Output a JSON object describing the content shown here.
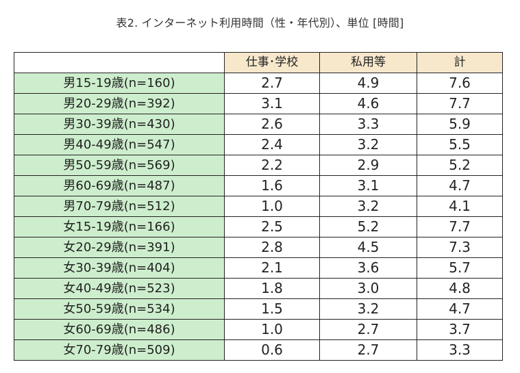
{
  "title": "表2. インターネット利用時間（性・年代別）、単位 [時間]",
  "table": {
    "headers": [
      "",
      "仕事･学校",
      "私用等",
      "計"
    ],
    "rows": [
      {
        "label": "男15-19歳(n=160)",
        "work": "2.7",
        "private": "4.9",
        "total": "7.6"
      },
      {
        "label": "男20-29歳(n=392)",
        "work": "3.1",
        "private": "4.6",
        "total": "7.7"
      },
      {
        "label": "男30-39歳(n=430)",
        "work": "2.6",
        "private": "3.3",
        "total": "5.9"
      },
      {
        "label": "男40-49歳(n=547)",
        "work": "2.4",
        "private": "3.2",
        "total": "5.5"
      },
      {
        "label": "男50-59歳(n=569)",
        "work": "2.2",
        "private": "2.9",
        "total": "5.2"
      },
      {
        "label": "男60-69歳(n=487)",
        "work": "1.6",
        "private": "3.1",
        "total": "4.7"
      },
      {
        "label": "男70-79歳(n=512)",
        "work": "1.0",
        "private": "3.2",
        "total": "4.1"
      },
      {
        "label": "女15-19歳(n=166)",
        "work": "2.5",
        "private": "5.2",
        "total": "7.7"
      },
      {
        "label": "女20-29歳(n=391)",
        "work": "2.8",
        "private": "4.5",
        "total": "7.3"
      },
      {
        "label": "女30-39歳(n=404)",
        "work": "2.1",
        "private": "3.6",
        "total": "5.7"
      },
      {
        "label": "女40-49歳(n=523)",
        "work": "1.8",
        "private": "3.0",
        "total": "4.8"
      },
      {
        "label": "女50-59歳(n=534)",
        "work": "1.5",
        "private": "3.2",
        "total": "4.7"
      },
      {
        "label": "女60-69歳(n=486)",
        "work": "1.0",
        "private": "2.7",
        "total": "3.7"
      },
      {
        "label": "女70-79歳(n=509)",
        "work": "0.6",
        "private": "2.7",
        "total": "3.3"
      }
    ]
  },
  "colors": {
    "header_bg": "#f7e8cc",
    "label_bg": "#cdeecd",
    "border": "#222222"
  }
}
